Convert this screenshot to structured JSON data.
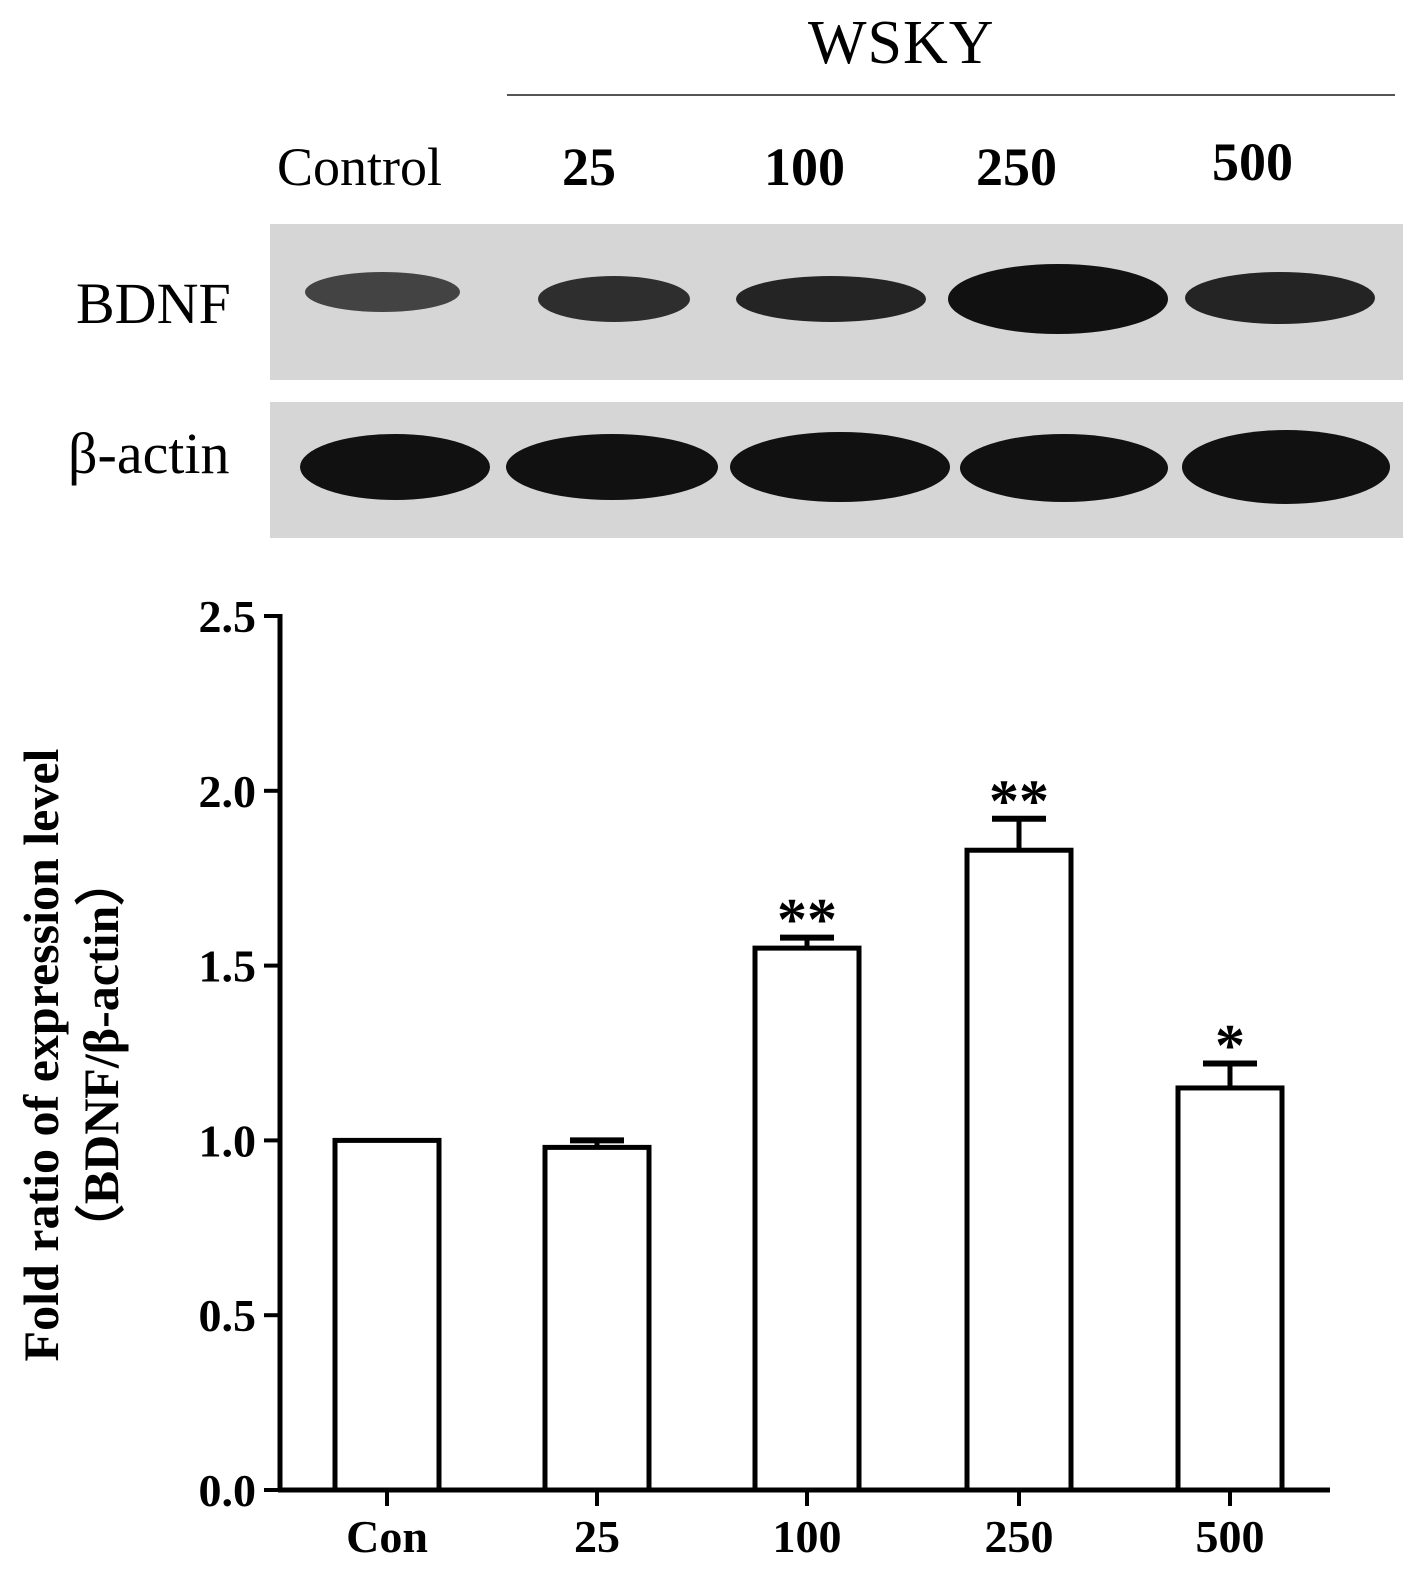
{
  "blot": {
    "group_label": "WSKY",
    "lane_labels": [
      "Control",
      "25",
      "100",
      "250",
      "500"
    ],
    "rows": [
      {
        "label": "BDNF",
        "band_intensity": [
          0.75,
          0.85,
          0.9,
          1.0,
          0.9
        ]
      },
      {
        "label": "β-actin",
        "band_intensity": [
          1.0,
          1.0,
          1.0,
          1.0,
          1.0
        ]
      }
    ]
  },
  "chart_data": {
    "type": "bar",
    "categories": [
      "Con",
      "25",
      "100",
      "250",
      "500"
    ],
    "values": [
      1.0,
      0.98,
      1.55,
      1.83,
      1.15
    ],
    "errors": [
      0.0,
      0.02,
      0.03,
      0.09,
      0.07
    ],
    "significance": [
      "",
      "",
      "**",
      "**",
      "*"
    ],
    "ylabel_line1": "Fold ratio of expression level",
    "ylabel_line2": "（BDNF/β-actin）",
    "ylim": [
      0,
      2.5
    ],
    "yticks": [
      "0.0",
      "0.5",
      "1.0",
      "1.5",
      "2.0",
      "2.5"
    ],
    "grid": false,
    "bar_fill": "#ffffff",
    "bar_stroke": "#000000"
  }
}
